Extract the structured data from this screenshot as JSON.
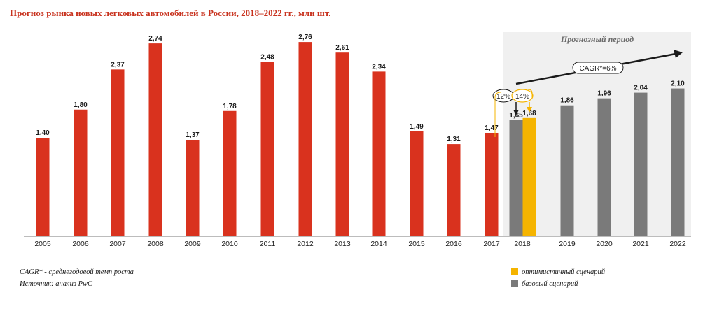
{
  "title": "Прогноз рынка новых легковых автомобилей в России, 2018–2022 гг., млн шт.",
  "forecast_label": "Прогнозный период",
  "cagr_label": "CAGR*=6%",
  "growth_labels": {
    "base": "12%",
    "optimistic": "14%"
  },
  "notes": [
    "CAGR* - среднегодовой темп роста",
    "Источник: анализ PwC"
  ],
  "legend": [
    {
      "label": "оптимистичный сценарий",
      "color": "#f5b400"
    },
    {
      "label": "базовый сценарий",
      "color": "#7a7a7a"
    }
  ],
  "colors": {
    "historical": "#d9321e",
    "base": "#7a7a7a",
    "optimistic": "#f5b400",
    "forecast_bg": "#f0f0f0",
    "title": "#c8321e"
  },
  "chart_data": {
    "type": "bar",
    "categories": [
      "2005",
      "2006",
      "2007",
      "2008",
      "2009",
      "2010",
      "2011",
      "2012",
      "2013",
      "2014",
      "2015",
      "2016",
      "2017",
      "2018",
      "2019",
      "2020",
      "2021",
      "2022"
    ],
    "bars": [
      {
        "year": "2005",
        "value": 1.4,
        "label": "1,40",
        "scenario": "historical"
      },
      {
        "year": "2006",
        "value": 1.8,
        "label": "1,80",
        "scenario": "historical"
      },
      {
        "year": "2007",
        "value": 2.37,
        "label": "2,37",
        "scenario": "historical"
      },
      {
        "year": "2008",
        "value": 2.74,
        "label": "2,74",
        "scenario": "historical"
      },
      {
        "year": "2009",
        "value": 1.37,
        "label": "1,37",
        "scenario": "historical"
      },
      {
        "year": "2010",
        "value": 1.78,
        "label": "1,78",
        "scenario": "historical"
      },
      {
        "year": "2011",
        "value": 2.48,
        "label": "2,48",
        "scenario": "historical"
      },
      {
        "year": "2012",
        "value": 2.76,
        "label": "2,76",
        "scenario": "historical"
      },
      {
        "year": "2013",
        "value": 2.61,
        "label": "2,61",
        "scenario": "historical"
      },
      {
        "year": "2014",
        "value": 2.34,
        "label": "2,34",
        "scenario": "historical"
      },
      {
        "year": "2015",
        "value": 1.49,
        "label": "1,49",
        "scenario": "historical"
      },
      {
        "year": "2016",
        "value": 1.31,
        "label": "1,31",
        "scenario": "historical"
      },
      {
        "year": "2017",
        "value": 1.47,
        "label": "1,47",
        "scenario": "historical"
      },
      {
        "year": "2018",
        "value": 1.65,
        "label": "1,65",
        "scenario": "base"
      },
      {
        "year": "2018",
        "value": 1.68,
        "label": "1,68",
        "scenario": "optimistic"
      },
      {
        "year": "2019",
        "value": 1.86,
        "label": "1,86",
        "scenario": "base"
      },
      {
        "year": "2020",
        "value": 1.96,
        "label": "1,96",
        "scenario": "base"
      },
      {
        "year": "2021",
        "value": 2.04,
        "label": "2,04",
        "scenario": "base"
      },
      {
        "year": "2022",
        "value": 2.1,
        "label": "2,10",
        "scenario": "base"
      }
    ],
    "ylim": [
      0,
      2.9
    ],
    "grid": false,
    "legend_position": "bottom-right"
  }
}
